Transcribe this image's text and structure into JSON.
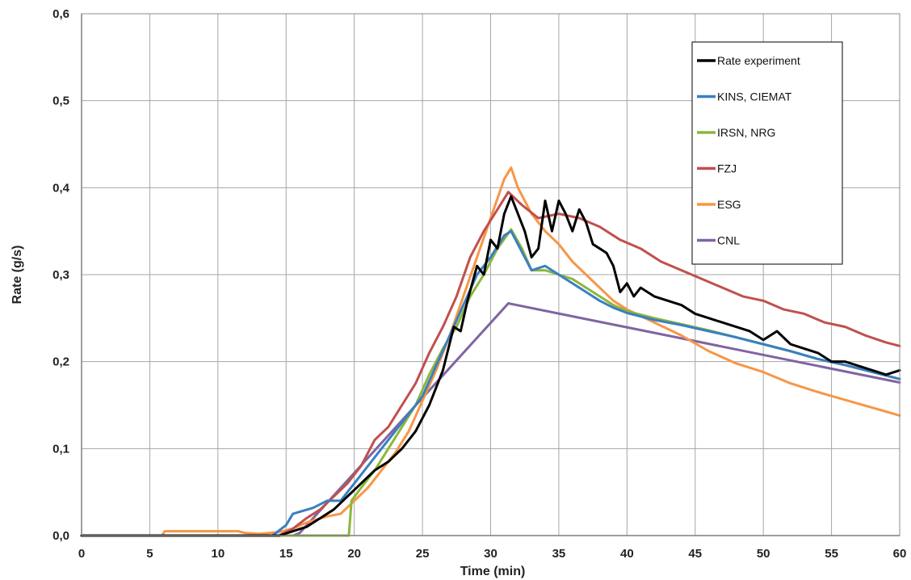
{
  "chart_data": {
    "type": "line",
    "title": "",
    "xlabel": "Time (min)",
    "ylabel": "Rate (g/s)",
    "xlim": [
      0,
      60
    ],
    "ylim": [
      0,
      0.6
    ],
    "x_ticks": [
      0,
      5,
      10,
      15,
      20,
      25,
      30,
      35,
      40,
      45,
      50,
      55,
      60
    ],
    "x_tick_labels": [
      "0",
      "5",
      "10",
      "15",
      "20",
      "25",
      "30",
      "35",
      "40",
      "45",
      "50",
      "55",
      "60"
    ],
    "y_ticks": [
      0,
      0.1,
      0.2,
      0.3,
      0.4,
      0.5,
      0.6
    ],
    "y_tick_labels": [
      "0,0",
      "0,1",
      "0,2",
      "0,3",
      "0,4",
      "0,5",
      "0,6"
    ],
    "grid": true,
    "legend_position": "top-right",
    "series": [
      {
        "name": "Rate experiment",
        "color": "#000000",
        "points": [
          [
            0,
            0
          ],
          [
            14.5,
            0
          ],
          [
            15.5,
            0.005
          ],
          [
            16.5,
            0.01
          ],
          [
            17.5,
            0.02
          ],
          [
            18.5,
            0.03
          ],
          [
            19.5,
            0.045
          ],
          [
            20.5,
            0.06
          ],
          [
            21.5,
            0.075
          ],
          [
            22.5,
            0.085
          ],
          [
            23.5,
            0.1
          ],
          [
            24.5,
            0.12
          ],
          [
            25.5,
            0.15
          ],
          [
            26.5,
            0.19
          ],
          [
            27.3,
            0.24
          ],
          [
            27.8,
            0.235
          ],
          [
            28.3,
            0.27
          ],
          [
            29,
            0.31
          ],
          [
            29.5,
            0.3
          ],
          [
            30,
            0.34
          ],
          [
            30.5,
            0.33
          ],
          [
            31,
            0.37
          ],
          [
            31.5,
            0.39
          ],
          [
            32,
            0.37
          ],
          [
            32.5,
            0.35
          ],
          [
            33,
            0.32
          ],
          [
            33.5,
            0.33
          ],
          [
            34,
            0.385
          ],
          [
            34.5,
            0.35
          ],
          [
            35,
            0.385
          ],
          [
            35.5,
            0.37
          ],
          [
            36,
            0.35
          ],
          [
            36.5,
            0.375
          ],
          [
            37,
            0.36
          ],
          [
            37.5,
            0.335
          ],
          [
            38,
            0.33
          ],
          [
            38.5,
            0.325
          ],
          [
            39,
            0.31
          ],
          [
            39.5,
            0.28
          ],
          [
            40,
            0.29
          ],
          [
            40.5,
            0.275
          ],
          [
            41,
            0.285
          ],
          [
            42,
            0.275
          ],
          [
            43,
            0.27
          ],
          [
            44,
            0.265
          ],
          [
            45,
            0.255
          ],
          [
            46,
            0.25
          ],
          [
            47,
            0.245
          ],
          [
            48,
            0.24
          ],
          [
            49,
            0.235
          ],
          [
            50,
            0.225
          ],
          [
            51,
            0.235
          ],
          [
            52,
            0.22
          ],
          [
            53,
            0.215
          ],
          [
            54,
            0.21
          ],
          [
            55,
            0.2
          ],
          [
            56,
            0.2
          ],
          [
            57,
            0.195
          ],
          [
            58,
            0.19
          ],
          [
            59,
            0.185
          ],
          [
            60,
            0.19
          ]
        ]
      },
      {
        "name": "KINS, CIEMAT",
        "color": "#3a7fc1",
        "points": [
          [
            0,
            0
          ],
          [
            14,
            0
          ],
          [
            15,
            0.012
          ],
          [
            15.5,
            0.025
          ],
          [
            17,
            0.032
          ],
          [
            18,
            0.04
          ],
          [
            19,
            0.04
          ],
          [
            20,
            0.06
          ],
          [
            21,
            0.08
          ],
          [
            22,
            0.1
          ],
          [
            23,
            0.12
          ],
          [
            24,
            0.14
          ],
          [
            25,
            0.16
          ],
          [
            26,
            0.195
          ],
          [
            27,
            0.23
          ],
          [
            28,
            0.265
          ],
          [
            29,
            0.3
          ],
          [
            30,
            0.32
          ],
          [
            31,
            0.345
          ],
          [
            31.5,
            0.35
          ],
          [
            32,
            0.335
          ],
          [
            33,
            0.305
          ],
          [
            34,
            0.31
          ],
          [
            35,
            0.3
          ],
          [
            36,
            0.29
          ],
          [
            37,
            0.28
          ],
          [
            38,
            0.27
          ],
          [
            39,
            0.262
          ],
          [
            40,
            0.256
          ],
          [
            42,
            0.248
          ],
          [
            44,
            0.242
          ],
          [
            46,
            0.235
          ],
          [
            48,
            0.228
          ],
          [
            50,
            0.22
          ],
          [
            52,
            0.212
          ],
          [
            54,
            0.203
          ],
          [
            56,
            0.196
          ],
          [
            58,
            0.188
          ],
          [
            60,
            0.18
          ]
        ]
      },
      {
        "name": "IRSN, NRG",
        "color": "#8db63a",
        "points": [
          [
            0,
            0
          ],
          [
            19.6,
            0
          ],
          [
            19.8,
            0.04
          ],
          [
            20.5,
            0.055
          ],
          [
            21.5,
            0.075
          ],
          [
            22.5,
            0.1
          ],
          [
            23.5,
            0.125
          ],
          [
            24.5,
            0.15
          ],
          [
            25.5,
            0.185
          ],
          [
            26.5,
            0.215
          ],
          [
            27.5,
            0.24
          ],
          [
            28.5,
            0.275
          ],
          [
            29.5,
            0.3
          ],
          [
            30.5,
            0.33
          ],
          [
            31.5,
            0.352
          ],
          [
            32.3,
            0.33
          ],
          [
            33,
            0.305
          ],
          [
            34,
            0.305
          ],
          [
            35,
            0.3
          ],
          [
            36,
            0.295
          ],
          [
            37,
            0.285
          ],
          [
            38,
            0.275
          ],
          [
            39,
            0.265
          ],
          [
            40,
            0.258
          ],
          [
            42,
            0.25
          ],
          [
            44,
            0.243
          ],
          [
            46,
            0.236
          ],
          [
            48,
            0.228
          ],
          [
            50,
            0.22
          ],
          [
            52,
            0.212
          ],
          [
            54,
            0.203
          ],
          [
            56,
            0.196
          ],
          [
            58,
            0.188
          ],
          [
            60,
            0.18
          ]
        ]
      },
      {
        "name": "FZJ",
        "color": "#c0504d",
        "points": [
          [
            0,
            0
          ],
          [
            14.5,
            0
          ],
          [
            15.5,
            0.008
          ],
          [
            16.5,
            0.02
          ],
          [
            17.5,
            0.03
          ],
          [
            18.5,
            0.045
          ],
          [
            19.5,
            0.06
          ],
          [
            20.5,
            0.08
          ],
          [
            21.5,
            0.11
          ],
          [
            22.5,
            0.125
          ],
          [
            23.5,
            0.15
          ],
          [
            24.5,
            0.175
          ],
          [
            25.5,
            0.21
          ],
          [
            26.5,
            0.24
          ],
          [
            27.5,
            0.275
          ],
          [
            28.5,
            0.32
          ],
          [
            29.5,
            0.35
          ],
          [
            30.5,
            0.375
          ],
          [
            31.3,
            0.395
          ],
          [
            32.3,
            0.38
          ],
          [
            33.5,
            0.365
          ],
          [
            35,
            0.37
          ],
          [
            36.5,
            0.365
          ],
          [
            38,
            0.355
          ],
          [
            39.5,
            0.34
          ],
          [
            41,
            0.33
          ],
          [
            42.5,
            0.315
          ],
          [
            44,
            0.305
          ],
          [
            45.5,
            0.295
          ],
          [
            47,
            0.285
          ],
          [
            48.5,
            0.275
          ],
          [
            50,
            0.27
          ],
          [
            51.5,
            0.26
          ],
          [
            53,
            0.255
          ],
          [
            54.5,
            0.245
          ],
          [
            56,
            0.24
          ],
          [
            57.5,
            0.23
          ],
          [
            59,
            0.222
          ],
          [
            60,
            0.218
          ]
        ]
      },
      {
        "name": "ESG",
        "color": "#f79646",
        "points": [
          [
            0,
            0
          ],
          [
            5.9,
            0
          ],
          [
            6.1,
            0.005
          ],
          [
            11.5,
            0.005
          ],
          [
            12,
            0.003
          ],
          [
            13,
            0.002
          ],
          [
            14.5,
            0.004
          ],
          [
            15.5,
            0.008
          ],
          [
            16.5,
            0.015
          ],
          [
            18,
            0.022
          ],
          [
            19,
            0.025
          ],
          [
            20,
            0.04
          ],
          [
            21,
            0.055
          ],
          [
            22,
            0.075
          ],
          [
            23,
            0.095
          ],
          [
            24,
            0.12
          ],
          [
            25,
            0.155
          ],
          [
            26,
            0.19
          ],
          [
            27,
            0.23
          ],
          [
            28,
            0.275
          ],
          [
            29,
            0.32
          ],
          [
            30,
            0.365
          ],
          [
            31,
            0.41
          ],
          [
            31.5,
            0.423
          ],
          [
            32,
            0.4
          ],
          [
            33,
            0.37
          ],
          [
            34,
            0.35
          ],
          [
            35,
            0.335
          ],
          [
            36,
            0.315
          ],
          [
            37,
            0.3
          ],
          [
            38,
            0.285
          ],
          [
            39,
            0.27
          ],
          [
            40,
            0.26
          ],
          [
            42,
            0.245
          ],
          [
            44,
            0.23
          ],
          [
            46,
            0.212
          ],
          [
            48,
            0.198
          ],
          [
            50,
            0.188
          ],
          [
            52,
            0.175
          ],
          [
            54,
            0.165
          ],
          [
            56,
            0.156
          ],
          [
            58,
            0.147
          ],
          [
            60,
            0.138
          ]
        ]
      },
      {
        "name": "CNL",
        "color": "#8064a2",
        "points": [
          [
            0,
            0
          ],
          [
            15.5,
            0
          ],
          [
            16,
            0.003
          ],
          [
            31.3,
            0.267
          ],
          [
            60,
            0.176
          ]
        ]
      }
    ]
  }
}
